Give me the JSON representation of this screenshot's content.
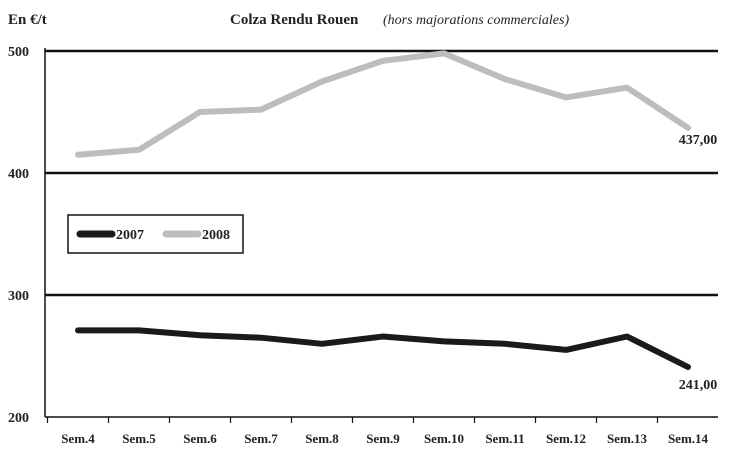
{
  "chart_data": {
    "type": "line",
    "title": "Colza Rendu Rouen",
    "subtitle": "(hors majorations commerciales)",
    "ylabel": "En €/t",
    "xlabel": "",
    "categories": [
      "Sem.4",
      "Sem.5",
      "Sem.6",
      "Sem.7",
      "Sem.8",
      "Sem.9",
      "Sem.10",
      "Sem.11",
      "Sem.12",
      "Sem.13",
      "Sem.14"
    ],
    "ylim": [
      200,
      500
    ],
    "yticks": [
      200,
      300,
      400,
      500
    ],
    "grid": true,
    "legend_position": "middle-left",
    "series": [
      {
        "name": "2007",
        "color": "#1a1a1a",
        "values": [
          271,
          271,
          267,
          265,
          260,
          266,
          262,
          260,
          255,
          266,
          241
        ],
        "end_label": "241,00"
      },
      {
        "name": "2008",
        "color": "#bdbdbd",
        "values": [
          415,
          419,
          450,
          452,
          475,
          492,
          498,
          477,
          462,
          470,
          437
        ],
        "end_label": "437,00"
      }
    ]
  }
}
